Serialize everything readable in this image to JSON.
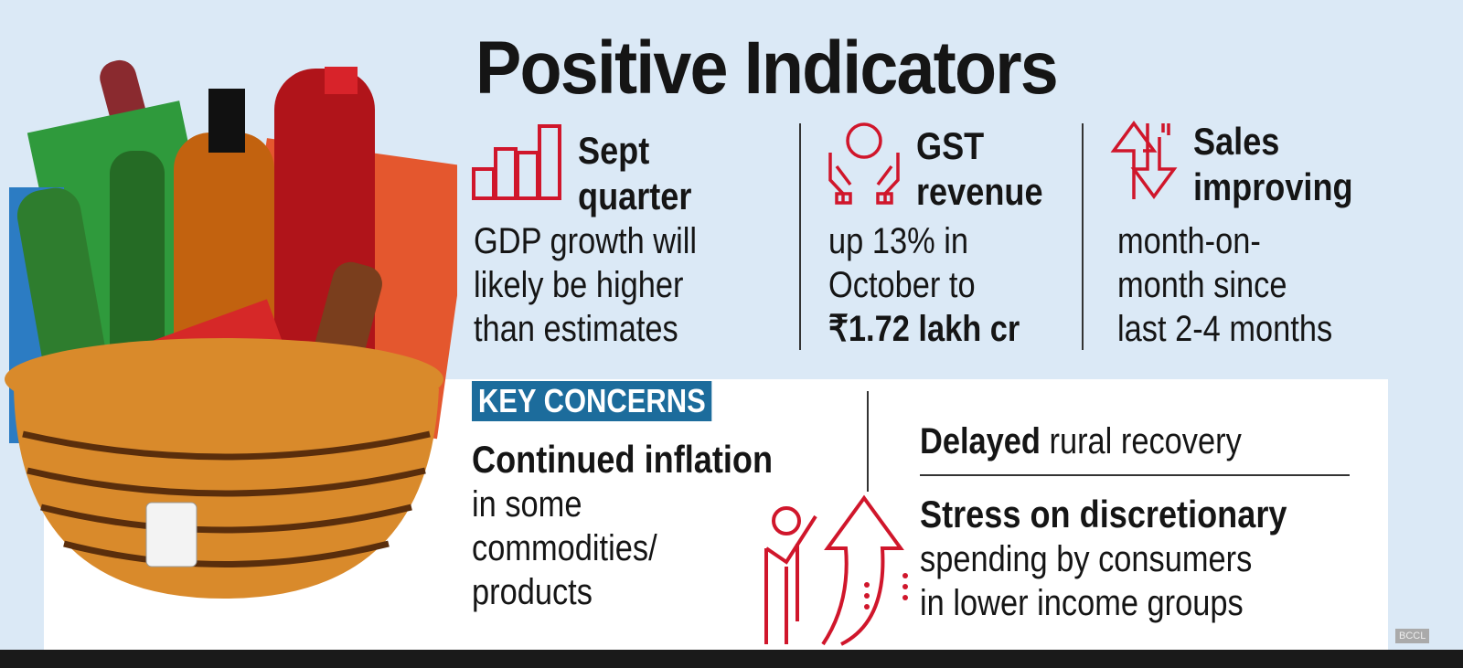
{
  "title": "Positive Indicators",
  "indicators": [
    {
      "icon": "bar-chart-icon",
      "heading": [
        "Sept",
        "quarter"
      ],
      "text": [
        "GDP growth will",
        "likely be higher",
        "than estimates"
      ]
    },
    {
      "icon": "hands-coin-icon",
      "heading": [
        "GST",
        "revenue"
      ],
      "text": [
        "up 13% in",
        "October to"
      ],
      "highlight": "₹1.72 lakh cr"
    },
    {
      "icon": "up-down-arrows-icon",
      "heading": [
        "Sales",
        "improving"
      ],
      "text": [
        "month-on-",
        "month since",
        "last 2-4 months"
      ]
    }
  ],
  "concerns": {
    "label": "KEY CONCERNS",
    "left": {
      "bold": "Continued inflation",
      "text": [
        "in some",
        "commodities/",
        "products"
      ]
    },
    "right": [
      {
        "bold": "Delayed",
        "text": " rural recovery"
      },
      {
        "bold": "Stress on discretionary",
        "text": [
          "spending by consumers",
          "in lower income groups"
        ]
      }
    ]
  },
  "watermark": "BCCL",
  "accent_color": "#d0162b",
  "banner_color": "#1c6c9c"
}
